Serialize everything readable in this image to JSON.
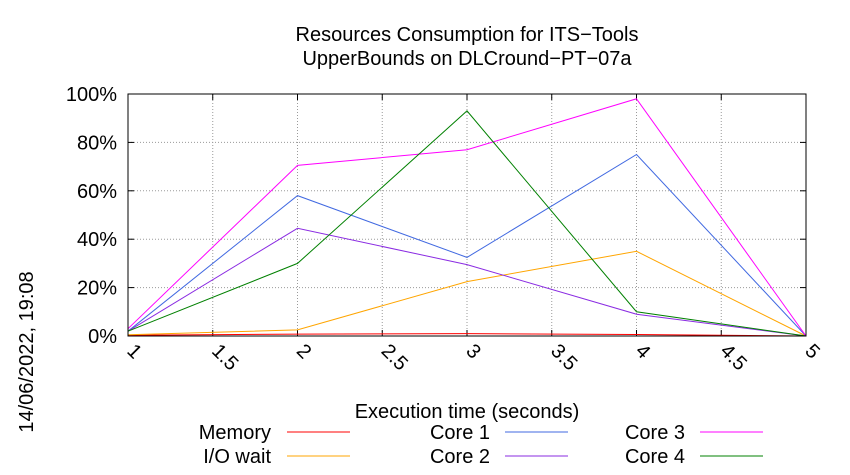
{
  "chart_data": {
    "type": "line",
    "title": "Resources Consumption for ITS−Tools",
    "subtitle": "UpperBounds on DLCround−PT−07a",
    "xlabel": "Execution time (seconds)",
    "ylabel": "",
    "side_label": "14/06/2022, 19:08",
    "xlim": [
      1,
      5
    ],
    "ylim": [
      0,
      100
    ],
    "x_ticks": [
      "1",
      "1.5",
      "2",
      "2.5",
      "3",
      "3.5",
      "4",
      "4.5",
      "5"
    ],
    "y_ticks": [
      "0%",
      "20%",
      "40%",
      "60%",
      "80%",
      "100%"
    ],
    "grid": true,
    "legend_position": "bottom",
    "x": [
      1,
      2,
      3,
      4,
      5
    ],
    "series": [
      {
        "name": "Memory",
        "color": "#ff0000",
        "values": [
          0.3,
          0.8,
          1.0,
          0.6,
          0
        ]
      },
      {
        "name": "I/O wait",
        "color": "#ffa500",
        "values": [
          0.5,
          2.5,
          22.5,
          35,
          0
        ]
      },
      {
        "name": "Core 1",
        "color": "#4169e1",
        "values": [
          2,
          58,
          32.5,
          75,
          0
        ]
      },
      {
        "name": "Core 2",
        "color": "#8a2be2",
        "values": [
          2,
          44.5,
          29.5,
          9,
          0
        ]
      },
      {
        "name": "Core 3",
        "color": "#ff00ff",
        "values": [
          3,
          70.5,
          77,
          98,
          0
        ]
      },
      {
        "name": "Core 4",
        "color": "#008000",
        "values": [
          2,
          30,
          93,
          10,
          0
        ]
      }
    ]
  }
}
